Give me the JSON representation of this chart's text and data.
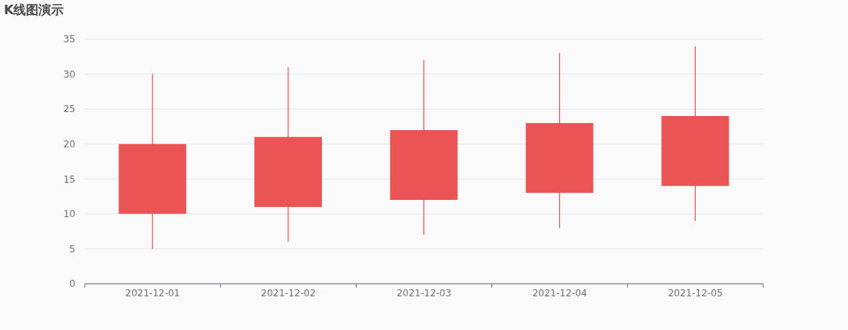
{
  "chart_data": {
    "type": "candlestick",
    "title": "K线图演示",
    "categories": [
      "2021-12-01",
      "2021-12-02",
      "2021-12-03",
      "2021-12-04",
      "2021-12-05"
    ],
    "ohlc": [
      [
        10,
        30,
        5,
        20
      ],
      [
        11,
        31,
        6,
        21
      ],
      [
        12,
        32,
        7,
        22
      ],
      [
        13,
        33,
        8,
        23
      ],
      [
        14,
        34,
        9,
        24
      ]
    ],
    "color": "#eb5454",
    "ylim": [
      0,
      35
    ],
    "yticks": [
      0,
      5,
      10,
      15,
      20,
      25,
      30,
      35
    ],
    "grid": "y"
  }
}
